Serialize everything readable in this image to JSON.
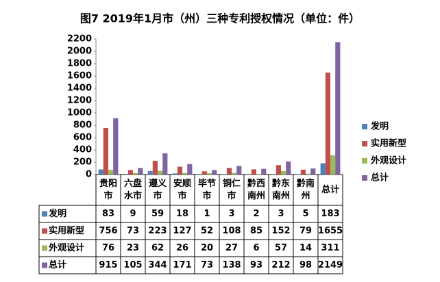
{
  "chart_data": {
    "type": "bar",
    "title": "图7 2019年1月市（州）三种专利授权情况（单位：件）",
    "categories": [
      "贵阳市",
      "六盘水市",
      "遵义市",
      "安顺市",
      "毕节市",
      "铜仁市",
      "黔西南州",
      "黔东南州",
      "黔南州",
      "总计"
    ],
    "series": [
      {
        "name": "发明",
        "color": "#4f81bd",
        "values": [
          83,
          9,
          59,
          18,
          1,
          3,
          2,
          3,
          5,
          183
        ]
      },
      {
        "name": "实用新型",
        "color": "#c0504d",
        "values": [
          756,
          73,
          223,
          127,
          52,
          108,
          85,
          152,
          79,
          1655
        ]
      },
      {
        "name": "外观设计",
        "color": "#9bbb59",
        "values": [
          76,
          23,
          62,
          26,
          20,
          27,
          6,
          57,
          14,
          311
        ]
      },
      {
        "name": "总计",
        "color": "#8064a2",
        "values": [
          915,
          105,
          344,
          171,
          73,
          138,
          93,
          212,
          98,
          2149
        ]
      }
    ],
    "ylim": [
      0,
      2200
    ],
    "yticks": [
      0,
      200,
      400,
      600,
      800,
      1000,
      1200,
      1400,
      1600,
      1800,
      2000,
      2200
    ],
    "grid": false,
    "legend": "right"
  }
}
